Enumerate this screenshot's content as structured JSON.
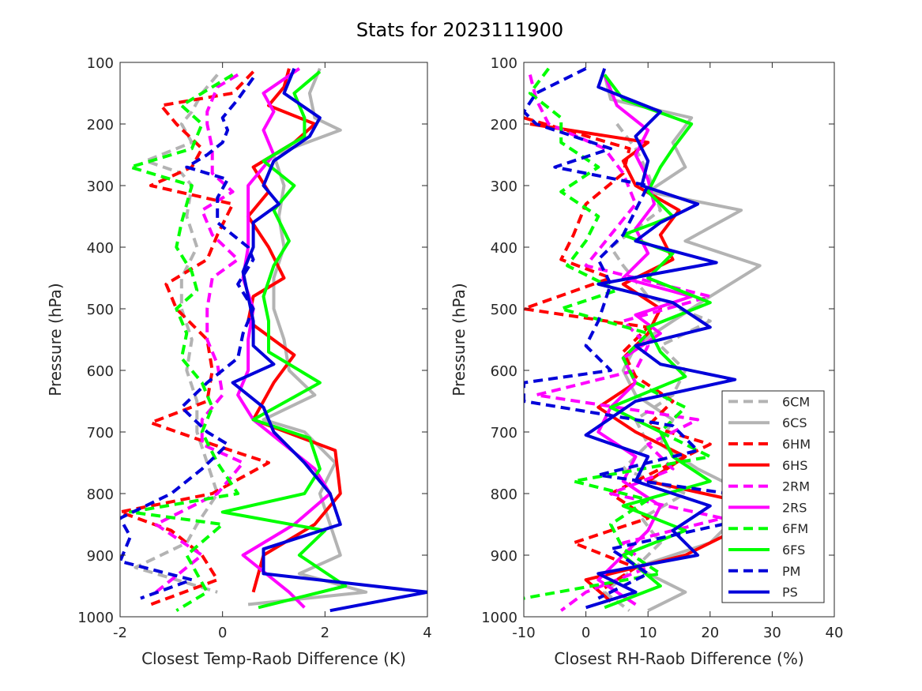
{
  "title": "Stats for 2023111900",
  "series_styles": [
    {
      "name": "6CM",
      "color": "#b3b3b3",
      "dash": true
    },
    {
      "name": "6CS",
      "color": "#b3b3b3",
      "dash": false
    },
    {
      "name": "6HM",
      "color": "#ff0000",
      "dash": true
    },
    {
      "name": "6HS",
      "color": "#ff0000",
      "dash": false
    },
    {
      "name": "2RM",
      "color": "#ff00ff",
      "dash": true
    },
    {
      "name": "2RS",
      "color": "#ff00ff",
      "dash": false
    },
    {
      "name": "6FM",
      "color": "#00ff00",
      "dash": true
    },
    {
      "name": "6FS",
      "color": "#00ff00",
      "dash": false
    },
    {
      "name": "PM",
      "color": "#0000d9",
      "dash": true
    },
    {
      "name": "PS",
      "color": "#0000d9",
      "dash": false
    }
  ],
  "chart_data": [
    {
      "type": "line",
      "orientation": "profile",
      "xlabel": "Closest Temp-Raob Difference (K)",
      "ylabel": "Pressure (hPa)",
      "xlim": [
        -2,
        4
      ],
      "ylim": [
        100,
        1000
      ],
      "y_reversed": true,
      "xticks": [
        -2,
        0,
        2,
        4
      ],
      "yticks": [
        100,
        200,
        300,
        400,
        500,
        600,
        700,
        800,
        900,
        1000
      ],
      "grid": false,
      "series": [
        {
          "name": "6CM",
          "pressure": [
            120,
            150,
            180,
            200,
            230,
            260,
            280,
            300,
            350,
            400,
            450,
            500,
            550,
            600,
            650,
            700,
            750,
            800,
            850,
            880,
            920,
            960
          ],
          "values": [
            -0.1,
            -0.4,
            -0.6,
            -0.8,
            -0.6,
            -1.5,
            -0.8,
            -0.6,
            -0.7,
            -0.5,
            -0.8,
            -0.8,
            -0.6,
            -0.7,
            -0.5,
            -0.5,
            -0.3,
            -0.1,
            -0.5,
            -0.7,
            -1.7,
            -0.1
          ]
        },
        {
          "name": "6CS",
          "pressure": [
            110,
            150,
            190,
            210,
            250,
            300,
            350,
            400,
            450,
            500,
            550,
            600,
            640,
            680,
            700,
            750,
            800,
            850,
            900,
            930,
            960,
            980
          ],
          "values": [
            1.9,
            1.7,
            1.8,
            2.3,
            1.0,
            1.2,
            1.1,
            1.2,
            1.0,
            1.0,
            1.2,
            1.3,
            1.8,
            0.8,
            1.6,
            2.2,
            1.9,
            2.1,
            2.3,
            1.5,
            2.8,
            0.5
          ]
        },
        {
          "name": "6HM",
          "pressure": [
            115,
            150,
            170,
            200,
            240,
            270,
            300,
            330,
            380,
            420,
            460,
            500,
            550,
            600,
            650,
            685,
            720,
            750,
            800,
            830,
            860,
            900,
            940,
            980
          ],
          "values": [
            0.6,
            0.2,
            -1.2,
            -0.9,
            -0.4,
            -0.6,
            -1.4,
            0.2,
            -0.1,
            -0.3,
            -1.1,
            -0.9,
            -0.3,
            -0.2,
            -0.3,
            -1.4,
            -0.2,
            0.9,
            -0.2,
            -2.0,
            -1.0,
            -0.4,
            -0.1,
            -1.4
          ]
        },
        {
          "name": "6HS",
          "pressure": [
            110,
            140,
            170,
            200,
            230,
            270,
            310,
            350,
            400,
            450,
            480,
            520,
            575,
            620,
            680,
            730,
            800,
            850,
            900,
            960
          ],
          "values": [
            1.3,
            1.2,
            0.9,
            1.8,
            1.4,
            0.6,
            0.9,
            0.5,
            0.9,
            1.2,
            0.6,
            0.5,
            1.4,
            1.0,
            0.6,
            2.2,
            2.3,
            1.8,
            0.8,
            0.6
          ]
        },
        {
          "name": "2RM",
          "pressure": [
            120,
            140,
            180,
            200,
            240,
            280,
            310,
            340,
            380,
            420,
            450,
            500,
            550,
            590,
            640,
            680,
            720,
            750,
            800,
            850,
            900,
            960
          ],
          "values": [
            0.3,
            -0.1,
            -0.3,
            -0.3,
            -0.2,
            -0.2,
            0.2,
            -0.4,
            -0.2,
            0.3,
            -0.2,
            -0.3,
            -0.3,
            -0.1,
            0.0,
            -0.4,
            -0.4,
            0.4,
            -0.1,
            -1.3,
            -0.4,
            -1.3
          ]
        },
        {
          "name": "2RS",
          "pressure": [
            110,
            150,
            180,
            210,
            250,
            300,
            350,
            400,
            450,
            500,
            550,
            600,
            640,
            680,
            720,
            760,
            800,
            850,
            900,
            960,
            985
          ],
          "values": [
            1.5,
            0.8,
            1.0,
            0.8,
            1.0,
            0.5,
            0.5,
            0.5,
            0.4,
            0.6,
            0.5,
            0.5,
            0.3,
            0.6,
            1.2,
            1.8,
            2.1,
            1.4,
            0.4,
            1.3,
            1.6
          ]
        },
        {
          "name": "6FM",
          "pressure": [
            120,
            150,
            170,
            200,
            240,
            270,
            300,
            330,
            360,
            400,
            440,
            470,
            500,
            540,
            580,
            620,
            660,
            700,
            750,
            800,
            830,
            850,
            900,
            960,
            990
          ],
          "values": [
            0.2,
            -0.4,
            -0.8,
            -0.4,
            -0.6,
            -1.8,
            -0.6,
            -0.7,
            -0.8,
            -0.9,
            -0.6,
            -0.5,
            -0.9,
            -0.7,
            -0.8,
            -0.4,
            -0.2,
            -0.4,
            -0.1,
            0.3,
            -1.8,
            0.0,
            -0.7,
            -0.3,
            -0.9
          ]
        },
        {
          "name": "6FS",
          "pressure": [
            115,
            150,
            190,
            220,
            260,
            300,
            340,
            390,
            430,
            480,
            520,
            570,
            620,
            680,
            710,
            760,
            800,
            830,
            860,
            900,
            950,
            985
          ],
          "values": [
            1.9,
            1.4,
            1.6,
            1.6,
            0.8,
            1.4,
            1.0,
            1.3,
            1.0,
            0.8,
            0.9,
            0.9,
            1.9,
            0.6,
            1.7,
            1.9,
            1.6,
            0.0,
            2.0,
            1.5,
            2.4,
            0.7
          ]
        },
        {
          "name": "PM",
          "pressure": [
            125,
            160,
            190,
            210,
            230,
            250,
            270,
            290,
            320,
            360,
            400,
            420,
            460,
            500,
            540,
            580,
            620,
            660,
            700,
            720,
            760,
            800,
            840,
            870,
            910,
            940,
            970
          ],
          "values": [
            0.6,
            0.3,
            0.0,
            0.1,
            0.0,
            -0.3,
            -0.7,
            0.1,
            -0.1,
            -0.1,
            0.5,
            0.6,
            0.3,
            0.6,
            0.4,
            0.3,
            -0.3,
            -0.8,
            -0.3,
            0.1,
            -0.4,
            -1.0,
            -2.0,
            -1.8,
            -2.0,
            -0.6,
            -1.6
          ]
        },
        {
          "name": "PS",
          "pressure": [
            110,
            150,
            190,
            220,
            260,
            300,
            330,
            360,
            400,
            440,
            480,
            520,
            560,
            590,
            620,
            660,
            700,
            750,
            800,
            850,
            890,
            930,
            960,
            990
          ],
          "values": [
            1.4,
            1.2,
            1.9,
            1.7,
            1.0,
            0.8,
            1.1,
            0.6,
            0.6,
            0.4,
            0.5,
            0.6,
            0.6,
            1.0,
            0.2,
            0.8,
            1.0,
            1.6,
            2.1,
            2.3,
            0.8,
            0.8,
            4.0,
            2.1
          ]
        }
      ]
    },
    {
      "type": "line",
      "orientation": "profile",
      "xlabel": "Closest RH-Raob Difference (%)",
      "ylabel": "Pressure (hPa)",
      "xlim": [
        -10,
        40
      ],
      "ylim": [
        100,
        1000
      ],
      "y_reversed": true,
      "xticks": [
        -10,
        0,
        10,
        20,
        30,
        40
      ],
      "yticks": [
        100,
        200,
        300,
        400,
        500,
        600,
        700,
        800,
        900,
        1000
      ],
      "grid": false,
      "legend": "bottom-right",
      "series": [
        {
          "name": "6CM",
          "pressure": [
            200,
            240,
            280,
            340,
            400,
            430,
            480,
            520,
            560,
            600,
            640,
            680,
            720,
            760,
            800,
            840,
            880,
            920,
            960,
            990
          ],
          "values": [
            5,
            8,
            10,
            12,
            4,
            6,
            10,
            20,
            12,
            16,
            14,
            8,
            10,
            6,
            16,
            9,
            12,
            8,
            3,
            7
          ]
        },
        {
          "name": "6CS",
          "pressure": [
            120,
            160,
            190,
            230,
            270,
            310,
            340,
            390,
            430,
            480,
            520,
            560,
            600,
            640,
            680,
            720,
            760,
            800,
            840,
            880,
            920,
            960,
            990
          ],
          "values": [
            3,
            4,
            17,
            14,
            16,
            10,
            25,
            16,
            28,
            20,
            14,
            8,
            6,
            8,
            14,
            12,
            18,
            26,
            24,
            20,
            8,
            16,
            10
          ]
        },
        {
          "name": "6HM",
          "pressure": [
            190,
            240,
            280,
            330,
            380,
            420,
            450,
            500,
            530,
            570,
            610,
            650,
            690,
            720,
            760,
            800,
            840,
            880,
            920,
            960
          ],
          "values": [
            -10,
            7,
            6,
            0,
            -2,
            -4,
            4,
            -10,
            10,
            6,
            8,
            14,
            10,
            20,
            12,
            4,
            10,
            -2,
            8,
            2
          ]
        },
        {
          "name": "6HS",
          "pressure": [
            200,
            230,
            260,
            300,
            340,
            380,
            420,
            460,
            500,
            540,
            580,
            620,
            660,
            700,
            740,
            780,
            820,
            860,
            900,
            940,
            975
          ],
          "values": [
            -9,
            10,
            6,
            8,
            15,
            12,
            14,
            6,
            12,
            10,
            6,
            8,
            2,
            8,
            16,
            10,
            28,
            24,
            16,
            0,
            4
          ]
        },
        {
          "name": "2RM",
          "pressure": [
            120,
            160,
            200,
            240,
            280,
            330,
            380,
            430,
            480,
            520,
            560,
            600,
            640,
            680,
            720,
            760,
            800,
            840,
            880,
            920,
            960,
            990
          ],
          "values": [
            -9,
            -8,
            -6,
            3,
            6,
            8,
            4,
            0,
            20,
            6,
            10,
            8,
            -8,
            18,
            10,
            14,
            4,
            22,
            6,
            10,
            0,
            -4
          ]
        },
        {
          "name": "2RS",
          "pressure": [
            120,
            170,
            210,
            250,
            290,
            330,
            370,
            410,
            450,
            480,
            510,
            540,
            580,
            620,
            660,
            700,
            740,
            780,
            820,
            860,
            900,
            940,
            980
          ],
          "values": [
            3,
            5,
            10,
            8,
            10,
            11,
            8,
            10,
            6,
            17,
            8,
            12,
            6,
            8,
            4,
            2,
            8,
            6,
            12,
            10,
            6,
            2,
            8
          ]
        },
        {
          "name": "6FM",
          "pressure": [
            110,
            150,
            190,
            230,
            270,
            310,
            350,
            390,
            430,
            470,
            500,
            540,
            580,
            620,
            660,
            700,
            740,
            780,
            810,
            850,
            890,
            930,
            970
          ],
          "values": [
            -6,
            -9,
            -4,
            -4,
            2,
            -4,
            2,
            0,
            -3,
            5,
            -4,
            10,
            6,
            8,
            16,
            12,
            20,
            -2,
            10,
            4,
            6,
            12,
            -10
          ]
        },
        {
          "name": "6FS",
          "pressure": [
            120,
            160,
            200,
            240,
            270,
            310,
            350,
            380,
            410,
            450,
            490,
            530,
            570,
            610,
            660,
            700,
            740,
            780,
            820,
            860,
            900,
            950,
            985
          ],
          "values": [
            3,
            6,
            17,
            14,
            12,
            10,
            14,
            6,
            14,
            10,
            20,
            10,
            12,
            16,
            4,
            12,
            14,
            20,
            6,
            16,
            6,
            12,
            3
          ]
        },
        {
          "name": "PM",
          "pressure": [
            110,
            150,
            180,
            200,
            240,
            270,
            300,
            340,
            380,
            420,
            460,
            520,
            560,
            600,
            620,
            650,
            690,
            730,
            770,
            810,
            850,
            890,
            930,
            970
          ],
          "values": [
            0,
            -8,
            -10,
            -8,
            4,
            -5,
            10,
            8,
            6,
            2,
            4,
            2,
            0,
            4,
            -10,
            -10,
            14,
            18,
            2,
            30,
            22,
            4,
            10,
            2
          ]
        },
        {
          "name": "PS",
          "pressure": [
            110,
            140,
            180,
            220,
            260,
            300,
            330,
            360,
            390,
            425,
            460,
            490,
            530,
            560,
            590,
            615,
            650,
            705,
            740,
            780,
            820,
            860,
            900,
            930,
            960,
            985
          ],
          "values": [
            3,
            2,
            12,
            8,
            10,
            9,
            18,
            12,
            8,
            21,
            2,
            14,
            20,
            8,
            12,
            24,
            8,
            0,
            10,
            8,
            20,
            14,
            18,
            2,
            8,
            0
          ]
        }
      ]
    }
  ]
}
